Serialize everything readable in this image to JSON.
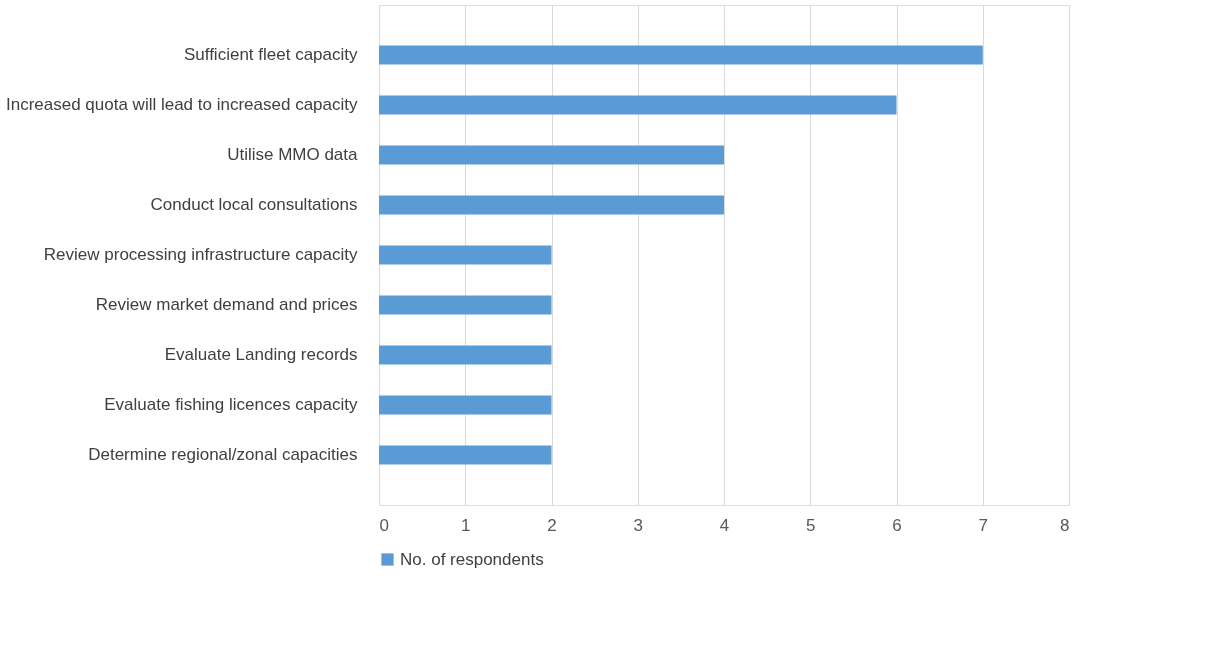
{
  "chart_data": {
    "type": "bar",
    "orientation": "horizontal",
    "categories": [
      "Sufficient fleet capacity",
      "Increased quota will lead to increased capacity",
      "Utilise MMO data",
      "Conduct local consultations",
      "Review processing infrastructure capacity",
      "Review market demand and prices",
      "Evaluate Landing records",
      "Evaluate fishing licences capacity",
      "Determine regional/zonal capacities"
    ],
    "series": [
      {
        "name": "No. of respondents",
        "color": "#5b9bd5",
        "values": [
          7,
          6,
          4,
          4,
          2,
          2,
          2,
          2,
          2
        ]
      }
    ],
    "xlim": [
      0,
      8
    ],
    "xticks": [
      0,
      1,
      2,
      3,
      4,
      5,
      6,
      7,
      8
    ],
    "grid": "x",
    "legend": "bottom"
  }
}
